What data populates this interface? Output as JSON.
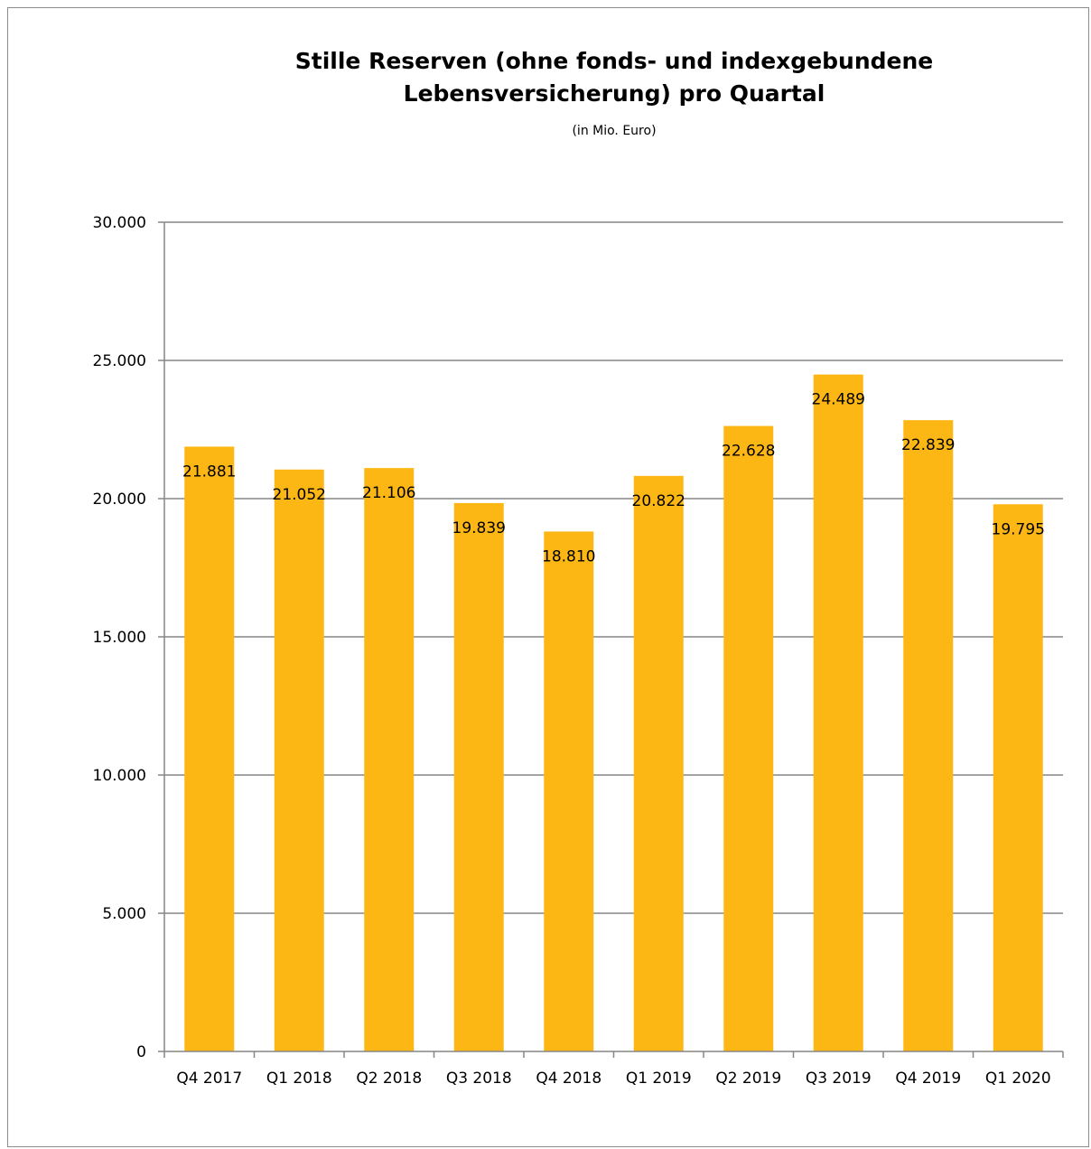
{
  "chart_data": {
    "type": "bar",
    "title_lines": [
      "Stille Reserven (ohne fonds- und indexgebundene",
      "Lebensversicherung) pro Quartal"
    ],
    "subtitle": "(in Mio. Euro)",
    "categories": [
      "Q4 2017",
      "Q1 2018",
      "Q2 2018",
      "Q3 2018",
      "Q4 2018",
      "Q1 2019",
      "Q2 2019",
      "Q3 2019",
      "Q4 2019",
      "Q1 2020"
    ],
    "values": [
      21881,
      21052,
      21106,
      19839,
      18810,
      20822,
      22628,
      24489,
      22839,
      19795
    ],
    "data_labels": [
      "21.881",
      "21.052",
      "21.106",
      "19.839",
      "18.810",
      "20.822",
      "22.628",
      "24.489",
      "22.839",
      "19.795"
    ],
    "y_ticks": [
      0,
      5000,
      10000,
      15000,
      20000,
      25000,
      30000
    ],
    "y_tick_labels": [
      "0",
      "5.000",
      "10.000",
      "15.000",
      "20.000",
      "25.000",
      "30.000"
    ],
    "ylim": [
      0,
      30000
    ],
    "grid": true,
    "legend": "none",
    "bar_color": "#FDB714",
    "grid_color": "#868686"
  }
}
